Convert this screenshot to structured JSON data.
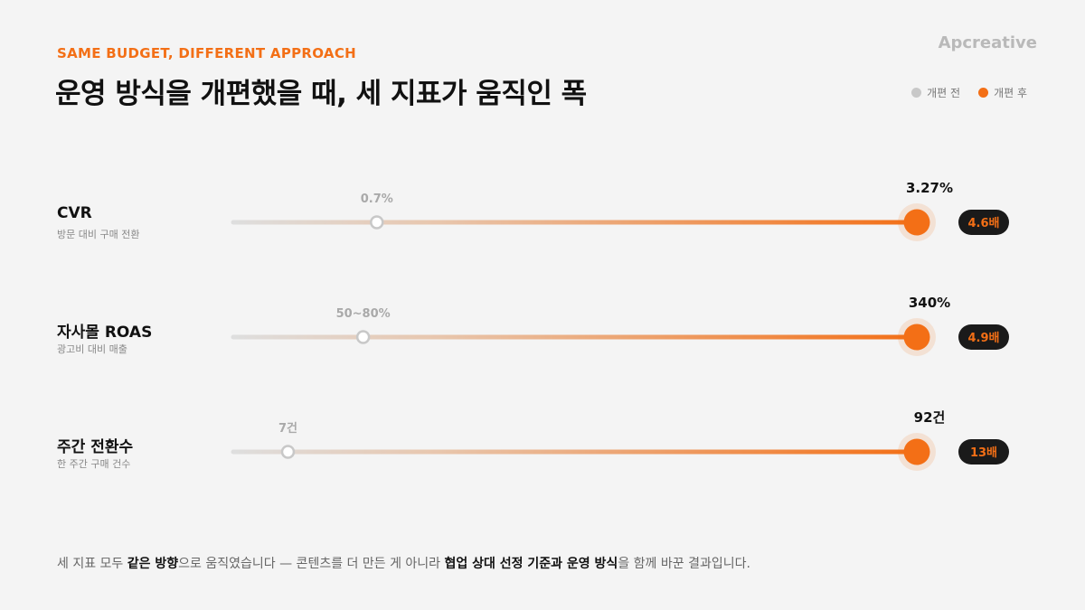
{
  "header": {
    "eyebrow": "SAME BUDGET, DIFFERENT APPROACH",
    "title": "운영 방식을 개편했을 때, 세 지표가 움직인 폭",
    "brand": "Apcreative"
  },
  "legend": [
    {
      "label": "개편 전",
      "color": "#c8c8c8"
    },
    {
      "label": "개편 후",
      "color": "#f36f16"
    }
  ],
  "colors": {
    "accent": "#f36f16",
    "before": "#c8c8c8",
    "badge_bg": "#1a1a1a"
  },
  "chart_data": {
    "type": "dumbbell",
    "rows": [
      {
        "name": "CVR",
        "sub": "방문 대비 구매 전환",
        "before_label": "0.7%",
        "after_label": "3.27%",
        "before_fraction": 0.21,
        "after_fraction": 1.0,
        "multiplier": "4.6배"
      },
      {
        "name": "자사몰 ROAS",
        "sub": "광고비 대비 매출",
        "before_label": "50~80%",
        "after_label": "340%",
        "before_fraction": 0.19,
        "after_fraction": 1.0,
        "multiplier": "4.9배"
      },
      {
        "name": "주간 전환수",
        "sub": "한 주간 구매 건수",
        "before_label": "7건",
        "after_label": "92건",
        "before_fraction": 0.08,
        "after_fraction": 1.0,
        "multiplier": "13배"
      }
    ]
  },
  "footer": {
    "p1": "세 지표 모두 ",
    "b1": "같은 방향",
    "p2": "으로 움직였습니다 — 콘텐츠를 더 만든 게 아니라 ",
    "b2": "협업 상대 선정 기준과 운영 방식",
    "p3": "을 함께 바꾼 결과입니다."
  }
}
